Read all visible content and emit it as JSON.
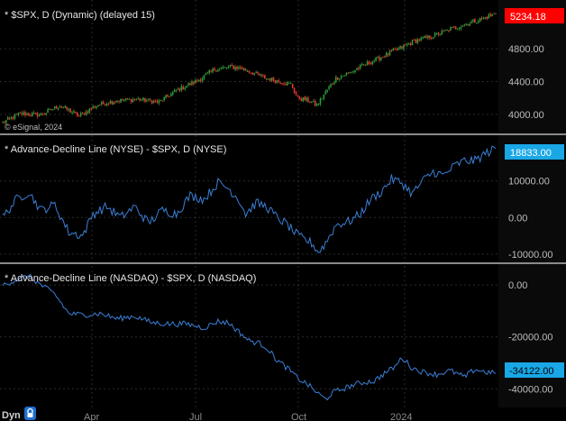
{
  "footer": {
    "mode_label": "Dyn",
    "lock_icon": "lock-icon"
  },
  "months": [
    "Apr",
    "Jul",
    "Oct",
    "2024"
  ],
  "chart_data": [
    {
      "type": "candlestick",
      "title": "* $SPX, D (Dynamic) (delayed 15)",
      "watermark": "© eSignal, 2024",
      "last_value": "5234.18",
      "last_value_color": "#ff0000",
      "up_color": "#2e9e3a",
      "down_color": "#e23b2e",
      "yticks": [
        "4000.00",
        "4400.00",
        "4800.00"
      ],
      "ylim": [
        3790,
        5330
      ],
      "anchors": [
        [
          0,
          3900
        ],
        [
          10,
          4010
        ],
        [
          22,
          3995
        ],
        [
          33,
          4110
        ],
        [
          44,
          3980
        ],
        [
          55,
          4120
        ],
        [
          66,
          4170
        ],
        [
          78,
          4185
        ],
        [
          90,
          4150
        ],
        [
          100,
          4290
        ],
        [
          112,
          4410
        ],
        [
          122,
          4550
        ],
        [
          132,
          4580
        ],
        [
          138,
          4560
        ],
        [
          145,
          4500
        ],
        [
          152,
          4440
        ],
        [
          160,
          4400
        ],
        [
          166,
          4370
        ],
        [
          170,
          4200
        ],
        [
          176,
          4170
        ],
        [
          181,
          4110
        ],
        [
          186,
          4270
        ],
        [
          192,
          4440
        ],
        [
          200,
          4510
        ],
        [
          208,
          4600
        ],
        [
          218,
          4700
        ],
        [
          228,
          4800
        ],
        [
          238,
          4900
        ],
        [
          248,
          4960
        ],
        [
          258,
          5040
        ],
        [
          268,
          5110
        ],
        [
          278,
          5180
        ],
        [
          284,
          5234.18
        ]
      ]
    },
    {
      "type": "line",
      "title": "* Advance-Decline Line (NYSE) - $SPX, D (NYSE)",
      "line_color": "#3a7fd6",
      "last_value": "18833.00",
      "last_value_color": "#19a7e6",
      "yticks": [
        "-10000.00",
        "0.00",
        "10000.00"
      ],
      "ylim": [
        -12000,
        22000
      ],
      "anchors": [
        [
          0,
          0
        ],
        [
          8,
          5000
        ],
        [
          15,
          7000
        ],
        [
          22,
          2000
        ],
        [
          30,
          3500
        ],
        [
          38,
          -4000
        ],
        [
          46,
          -5000
        ],
        [
          52,
          1000
        ],
        [
          60,
          3000
        ],
        [
          68,
          0
        ],
        [
          76,
          3000
        ],
        [
          84,
          -1500
        ],
        [
          92,
          2000
        ],
        [
          100,
          1000
        ],
        [
          108,
          6000
        ],
        [
          116,
          5000
        ],
        [
          124,
          9500
        ],
        [
          130,
          8000
        ],
        [
          136,
          5000
        ],
        [
          140,
          1000
        ],
        [
          146,
          4000
        ],
        [
          152,
          3000
        ],
        [
          158,
          0
        ],
        [
          164,
          -2000
        ],
        [
          170,
          -5000
        ],
        [
          178,
          -7000
        ],
        [
          182,
          -9500
        ],
        [
          186,
          -7000
        ],
        [
          192,
          -2000
        ],
        [
          200,
          -1000
        ],
        [
          206,
          1000
        ],
        [
          212,
          5000
        ],
        [
          218,
          7000
        ],
        [
          224,
          10500
        ],
        [
          230,
          9500
        ],
        [
          236,
          6500
        ],
        [
          242,
          10000
        ],
        [
          248,
          12500
        ],
        [
          254,
          11500
        ],
        [
          260,
          14000
        ],
        [
          266,
          15500
        ],
        [
          272,
          15500
        ],
        [
          278,
          17500
        ],
        [
          284,
          18833
        ]
      ]
    },
    {
      "type": "line",
      "title": "* Advance-Decline Line (NASDAQ) - $SPX, D (NASDAQ)",
      "line_color": "#3a7fd6",
      "last_value": "-34122.00",
      "last_value_color": "#19a7e6",
      "yticks": [
        "0.00",
        "-20000.00",
        "-40000.00"
      ],
      "ylim": [
        -46500,
        7000
      ],
      "anchors": [
        [
          0,
          0
        ],
        [
          8,
          2000
        ],
        [
          15,
          3500
        ],
        [
          22,
          0
        ],
        [
          30,
          -3500
        ],
        [
          38,
          -11000
        ],
        [
          46,
          -11500
        ],
        [
          56,
          -11000
        ],
        [
          66,
          -13000
        ],
        [
          76,
          -12000
        ],
        [
          86,
          -14500
        ],
        [
          96,
          -15000
        ],
        [
          106,
          -15000
        ],
        [
          116,
          -16500
        ],
        [
          124,
          -14000
        ],
        [
          130,
          -14500
        ],
        [
          136,
          -18000
        ],
        [
          142,
          -21500
        ],
        [
          148,
          -22500
        ],
        [
          152,
          -24000
        ],
        [
          158,
          -29000
        ],
        [
          164,
          -32000
        ],
        [
          170,
          -36000
        ],
        [
          176,
          -38500
        ],
        [
          182,
          -42000
        ],
        [
          186,
          -44000
        ],
        [
          190,
          -41500
        ],
        [
          196,
          -40000
        ],
        [
          202,
          -38500
        ],
        [
          208,
          -37500
        ],
        [
          214,
          -37000
        ],
        [
          220,
          -34000
        ],
        [
          226,
          -31500
        ],
        [
          230,
          -28000
        ],
        [
          236,
          -32000
        ],
        [
          242,
          -33500
        ],
        [
          250,
          -34500
        ],
        [
          258,
          -33000
        ],
        [
          266,
          -35500
        ],
        [
          272,
          -32500
        ],
        [
          278,
          -33500
        ],
        [
          284,
          -34122
        ]
      ]
    }
  ]
}
